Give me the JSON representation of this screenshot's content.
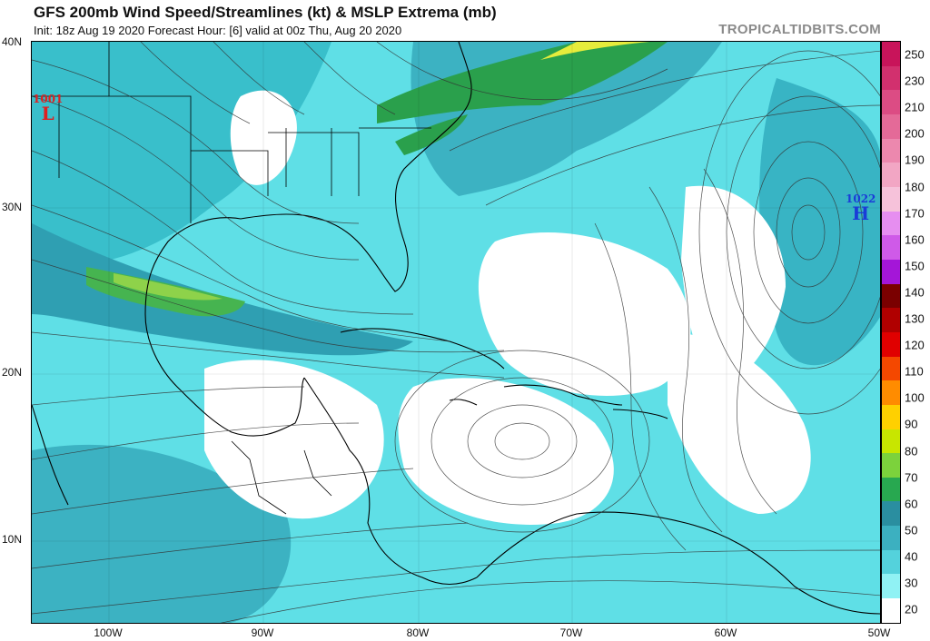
{
  "title": "GFS 200mb Wind Speed/Streamlines (kt) & MSLP Extrema (mb)",
  "subtitle": "Init: 18z Aug 19 2020   Forecast Hour: [6]   valid at 00z Thu, Aug 20 2020",
  "source": "TROPICALTIDBITS.COM",
  "lat_labels": [
    "40N",
    "30N",
    "20N",
    "10N"
  ],
  "lon_labels": [
    "100W",
    "90W",
    "80W",
    "70W",
    "60W",
    "50W"
  ],
  "pressure_centers": [
    {
      "value": "1001",
      "letter": "L",
      "color": "#e02020"
    },
    {
      "value": "1022",
      "letter": "H",
      "color": "#1a3cd8"
    }
  ],
  "colorbar": {
    "labels": [
      "250",
      "230",
      "210",
      "200",
      "190",
      "180",
      "170",
      "160",
      "150",
      "140",
      "130",
      "120",
      "110",
      "100",
      "90",
      "80",
      "70",
      "60",
      "50",
      "40",
      "30",
      "20"
    ],
    "colors": [
      "#c8145a",
      "#d2306e",
      "#dc4c84",
      "#e46a98",
      "#ec88ae",
      "#f2a6c4",
      "#f6c2da",
      "#e68ef0",
      "#cf5ae8",
      "#a416d8",
      "#7a0000",
      "#b00000",
      "#e00000",
      "#f44800",
      "#ff8c00",
      "#ffd000",
      "#c8e600",
      "#7cd23c",
      "#28a850",
      "#2a8ea0",
      "#3cb0c0",
      "#54d2dc",
      "#90f2f4",
      "#ffffff"
    ]
  }
}
